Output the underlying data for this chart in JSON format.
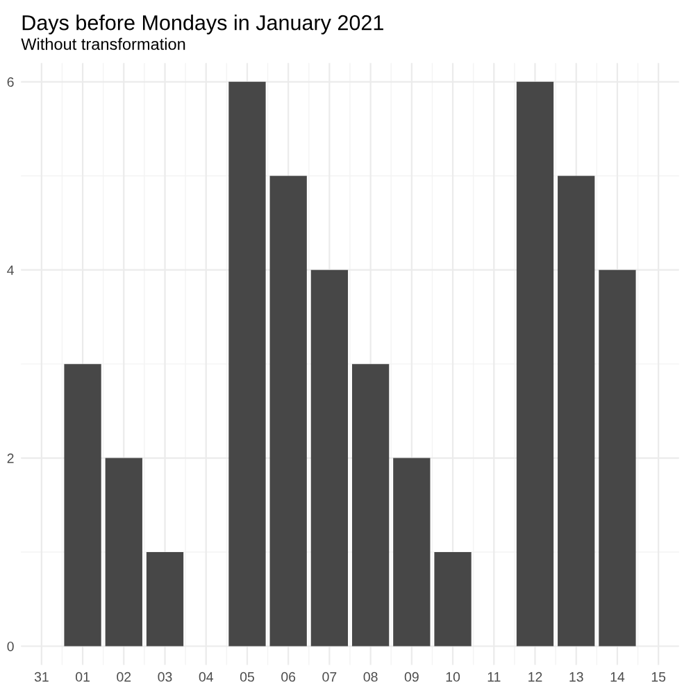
{
  "chart_data": {
    "type": "bar",
    "title": "Days before Mondays in January 2021",
    "subtitle": "Without transformation",
    "x": [
      "2021-01-01",
      "2021-01-02",
      "2021-01-03",
      "2021-01-05",
      "2021-01-06",
      "2021-01-07",
      "2021-01-08",
      "2021-01-09",
      "2021-01-10",
      "2021-01-12",
      "2021-01-13",
      "2021-01-14"
    ],
    "values": [
      3,
      2,
      1,
      6,
      5,
      4,
      3,
      2,
      1,
      6,
      5,
      4
    ],
    "color": "#474747",
    "xlim": [
      "2020-12-30T12:00",
      "2021-01-15T12:00"
    ],
    "xticks": [
      {
        "value": "2020-12-31",
        "label": "31"
      },
      {
        "value": "2021-01-01",
        "label": "01"
      },
      {
        "value": "2021-01-02",
        "label": "02"
      },
      {
        "value": "2021-01-03",
        "label": "03"
      },
      {
        "value": "2021-01-04",
        "label": "04"
      },
      {
        "value": "2021-01-05",
        "label": "05"
      },
      {
        "value": "2021-01-06",
        "label": "06"
      },
      {
        "value": "2021-01-07",
        "label": "07"
      },
      {
        "value": "2021-01-08",
        "label": "08"
      },
      {
        "value": "2021-01-09",
        "label": "09"
      },
      {
        "value": "2021-01-10",
        "label": "10"
      },
      {
        "value": "2021-01-11",
        "label": "11"
      },
      {
        "value": "2021-01-12",
        "label": "12"
      },
      {
        "value": "2021-01-13",
        "label": "13"
      },
      {
        "value": "2021-01-14",
        "label": "14"
      },
      {
        "value": "2021-01-15",
        "label": "15"
      }
    ],
    "ylim": [
      -0.2,
      6.2
    ],
    "yticks": [
      0,
      2,
      4,
      6
    ],
    "grid": true
  }
}
